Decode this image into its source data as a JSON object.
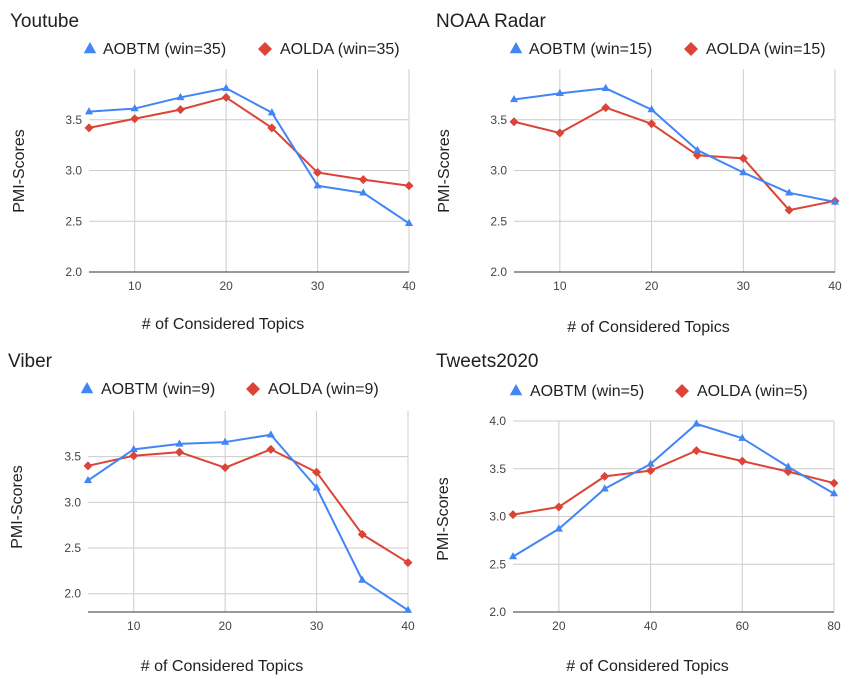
{
  "colors": {
    "aobtm": "#4285f4",
    "aolda": "#db4437"
  },
  "chart_data": [
    {
      "type": "line",
      "title": "Youtube",
      "xlabel": "# of Considered Topics",
      "ylabel": "PMI-Scores",
      "xlim": [
        5,
        40
      ],
      "ylim": [
        2.0,
        4.0
      ],
      "xticks": [
        10,
        20,
        30,
        40
      ],
      "yticks": [
        2.0,
        2.5,
        3.0,
        3.5
      ],
      "x": [
        5,
        10,
        15,
        20,
        25,
        30,
        35,
        40
      ],
      "series": [
        {
          "name": "AOBTM (win=35)",
          "marker": "triangle",
          "values": [
            3.58,
            3.61,
            3.72,
            3.81,
            3.57,
            2.85,
            2.78,
            2.48
          ]
        },
        {
          "name": "AOLDA (win=35)",
          "marker": "diamond",
          "values": [
            3.42,
            3.51,
            3.6,
            3.72,
            3.42,
            2.98,
            2.91,
            2.85
          ]
        }
      ]
    },
    {
      "type": "line",
      "title": "NOAA Radar",
      "xlabel": "# of Considered Topics",
      "ylabel": "PMI-Scores",
      "xlim": [
        5,
        40
      ],
      "ylim": [
        2.0,
        4.0
      ],
      "xticks": [
        10,
        20,
        30,
        40
      ],
      "yticks": [
        2.0,
        2.5,
        3.0,
        3.5
      ],
      "x": [
        5,
        10,
        15,
        20,
        25,
        30,
        35,
        40
      ],
      "series": [
        {
          "name": "AOBTM (win=15)",
          "marker": "triangle",
          "values": [
            3.7,
            3.76,
            3.81,
            3.6,
            3.2,
            2.98,
            2.78,
            2.69
          ]
        },
        {
          "name": "AOLDA (win=15)",
          "marker": "diamond",
          "values": [
            3.48,
            3.37,
            3.62,
            3.46,
            3.15,
            3.12,
            2.61,
            2.7
          ]
        }
      ]
    },
    {
      "type": "line",
      "title": "Viber",
      "xlabel": "# of Considered Topics",
      "ylabel": "PMI-Scores",
      "xlim": [
        5,
        40
      ],
      "ylim": [
        1.8,
        4.0
      ],
      "xticks": [
        10,
        20,
        30,
        40
      ],
      "yticks": [
        2.0,
        2.5,
        3.0,
        3.5
      ],
      "x": [
        5,
        10,
        15,
        20,
        25,
        30,
        35,
        40
      ],
      "series": [
        {
          "name": "AOBTM (win=9)",
          "marker": "triangle",
          "values": [
            3.24,
            3.58,
            3.64,
            3.66,
            3.74,
            3.16,
            2.15,
            1.82
          ]
        },
        {
          "name": "AOLDA (win=9)",
          "marker": "diamond",
          "values": [
            3.4,
            3.51,
            3.55,
            3.38,
            3.58,
            3.33,
            2.65,
            2.34
          ]
        }
      ]
    },
    {
      "type": "line",
      "title": "Tweets2020",
      "xlabel": "# of Considered Topics",
      "ylabel": "PMI-Scores",
      "xlim": [
        10,
        80
      ],
      "ylim": [
        2.0,
        4.0
      ],
      "xticks": [
        20,
        40,
        60,
        80
      ],
      "yticks": [
        2.0,
        2.5,
        3.0,
        3.5,
        4.0
      ],
      "x": [
        10,
        20,
        30,
        40,
        50,
        60,
        70,
        80
      ],
      "series": [
        {
          "name": "AOBTM (win=5)",
          "marker": "triangle",
          "values": [
            2.58,
            2.87,
            3.29,
            3.55,
            3.97,
            3.82,
            3.52,
            3.24
          ]
        },
        {
          "name": "AOLDA (win=5)",
          "marker": "diamond",
          "values": [
            3.02,
            3.1,
            3.42,
            3.48,
            3.69,
            3.58,
            3.47,
            3.35
          ]
        }
      ]
    }
  ]
}
